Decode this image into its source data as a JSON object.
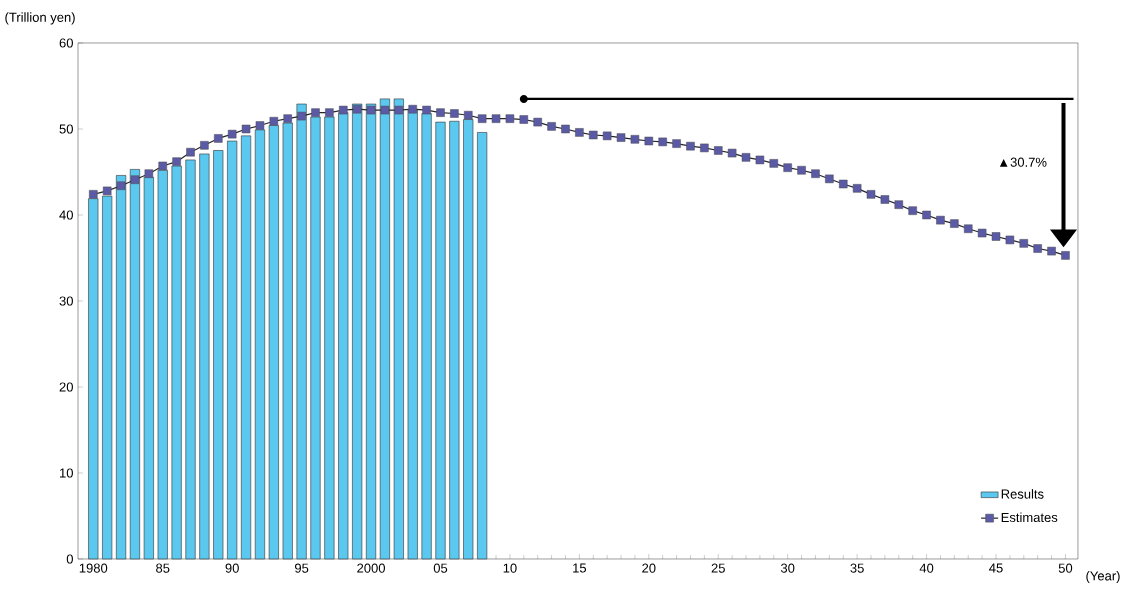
{
  "chart_data": {
    "type": "bar",
    "ylabel": "(Trillion yen)",
    "xlabel": "(Year)",
    "xlim": [
      1978.9,
      2050.9
    ],
    "ylim": [
      0,
      60
    ],
    "xticks": [
      1980,
      {
        "value": 1985,
        "label": "85"
      },
      {
        "value": 1990,
        "label": "90"
      },
      {
        "value": 1995,
        "label": "95"
      },
      2000,
      {
        "value": 2005,
        "label": "05"
      },
      {
        "value": 2010,
        "label": "10"
      },
      {
        "value": 2015,
        "label": "15"
      },
      {
        "value": 2020,
        "label": "20"
      },
      {
        "value": 2025,
        "label": "25"
      },
      {
        "value": 2030,
        "label": "30"
      },
      {
        "value": 2035,
        "label": "35"
      },
      {
        "value": 2040,
        "label": "40"
      },
      {
        "value": 2045,
        "label": "45"
      },
      {
        "value": 2050,
        "label": "50"
      }
    ],
    "yticks": [
      0,
      10,
      20,
      30,
      40,
      50,
      60
    ],
    "legend": "bottom right",
    "series": [
      {
        "name": "Results",
        "color": "#5bc8ef",
        "x": [
          1980,
          1981,
          1982,
          1983,
          1984,
          1985,
          1986,
          1987,
          1988,
          1989,
          1990,
          1991,
          1992,
          1993,
          1994,
          1995,
          1996,
          1997,
          1998,
          1999,
          2000,
          2001,
          2002,
          2003,
          2004,
          2005,
          2006,
          2007,
          2008
        ],
        "values": [
          41.9,
          42.2,
          44.6,
          45.3,
          44.4,
          45.2,
          45.7,
          46.4,
          47.1,
          47.5,
          48.6,
          49.2,
          49.9,
          50.4,
          50.7,
          52.9,
          51.4,
          51.4,
          51.9,
          52.9,
          52.9,
          53.5,
          53.5,
          52.2,
          51.8,
          50.8,
          50.9,
          51.1,
          49.6
        ]
      },
      {
        "name": "Estimates",
        "type": "line",
        "color": "#5b5aa6",
        "marker": "square",
        "x": [
          1980,
          1981,
          1982,
          1983,
          1984,
          1985,
          1986,
          1987,
          1988,
          1989,
          1990,
          1991,
          1992,
          1993,
          1994,
          1995,
          1996,
          1997,
          1998,
          1999,
          2000,
          2001,
          2002,
          2003,
          2004,
          2005,
          2006,
          2007,
          2008,
          2009,
          2010,
          2011,
          2012,
          2013,
          2014,
          2015,
          2016,
          2017,
          2018,
          2019,
          2020,
          2021,
          2022,
          2023,
          2024,
          2025,
          2026,
          2027,
          2028,
          2029,
          2030,
          2031,
          2032,
          2033,
          2034,
          2035,
          2036,
          2037,
          2038,
          2039,
          2040,
          2041,
          2042,
          2043,
          2044,
          2045,
          2046,
          2047,
          2048,
          2049,
          2050
        ],
        "values": [
          42.4,
          42.8,
          43.4,
          44.1,
          44.8,
          45.7,
          46.2,
          47.3,
          48.1,
          48.9,
          49.4,
          50.0,
          50.4,
          50.9,
          51.2,
          51.5,
          51.9,
          51.9,
          52.2,
          52.3,
          52.2,
          52.2,
          52.2,
          52.3,
          52.2,
          51.9,
          51.8,
          51.6,
          51.2,
          51.2,
          51.2,
          51.1,
          50.8,
          50.3,
          50.0,
          49.6,
          49.3,
          49.2,
          49.0,
          48.8,
          48.6,
          48.5,
          48.3,
          48.0,
          47.8,
          47.5,
          47.2,
          46.7,
          46.4,
          46.0,
          45.5,
          45.2,
          44.8,
          44.2,
          43.6,
          43.1,
          42.4,
          41.8,
          41.2,
          40.5,
          40.0,
          39.4,
          39.0,
          38.4,
          37.9,
          37.5,
          37.1,
          36.7,
          36.1,
          35.8,
          35.3
        ]
      }
    ],
    "annotations": [
      "▲30.7%"
    ]
  }
}
